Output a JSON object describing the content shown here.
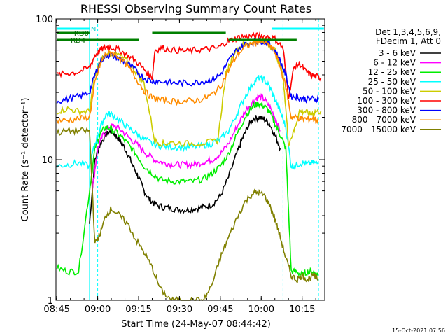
{
  "chart_data": {
    "type": "line",
    "title": "RHESSI Observing Summary Count Rates",
    "xlabel": "Start Time (24-May-07 08:44:42)",
    "ylabel": "Count Rate (s⁻¹ detector⁻¹)",
    "y_scale": "log",
    "ylim": [
      1,
      100
    ],
    "xlim": [
      "08:45",
      "10:23"
    ],
    "x_ticks": [
      "08:45",
      "09:00",
      "09:15",
      "09:30",
      "09:45",
      "10:00",
      "10:15"
    ],
    "y_ticks": [
      "1",
      "10",
      "100"
    ],
    "grid": false,
    "legend_placement": "right",
    "legend_header": [
      "Det 1,3,4,5,6,9,",
      "FDecim 1, Att 0"
    ],
    "footer_date": "15-Oct-2021 07:56",
    "series": [
      {
        "name": "3 - 6 keV",
        "color": "#000000",
        "x": [
          "08:57",
          "08:59",
          "09:01",
          "09:03",
          "09:05",
          "09:07",
          "09:09",
          "09:11",
          "09:13",
          "09:15",
          "09:17",
          "09:19",
          "09:21",
          "09:24",
          "09:27",
          "09:30",
          "09:33",
          "09:36",
          "09:39",
          "09:42",
          "09:45",
          "09:48",
          "09:51",
          "09:53",
          "09:55",
          "09:57",
          "09:59",
          "10:01",
          "10:03",
          "10:05",
          "10:07"
        ],
        "y": [
          3.5,
          10,
          13,
          15,
          16,
          14.5,
          13,
          11,
          9,
          7.5,
          6,
          5.2,
          4.8,
          4.6,
          4.5,
          4.4,
          4.4,
          4.5,
          4.6,
          4.8,
          5.5,
          7.5,
          11,
          14,
          17,
          19.5,
          20,
          19.5,
          18,
          15,
          12
        ]
      },
      {
        "name": "6 - 12 keV",
        "color": "#ff00ff",
        "x": [
          "08:58",
          "09:00",
          "09:02",
          "09:04",
          "09:06",
          "09:09",
          "09:12",
          "09:15",
          "09:18",
          "09:21",
          "09:24",
          "09:27",
          "09:30",
          "09:33",
          "09:36",
          "09:39",
          "09:42",
          "09:45",
          "09:48",
          "09:51",
          "09:54",
          "09:57",
          "09:59",
          "10:01",
          "10:03",
          "10:05",
          "10:07"
        ],
        "y": [
          6,
          12,
          15,
          17,
          17.5,
          16,
          14,
          12.5,
          11,
          10,
          9.5,
          9.3,
          9.2,
          9.2,
          9.3,
          9.6,
          10,
          11,
          13,
          17,
          22,
          26,
          28,
          27,
          24,
          20,
          16
        ]
      },
      {
        "name": "12 - 25 keV",
        "color": "#00ee00",
        "x": [
          "08:45",
          "08:49",
          "08:53",
          "08:57",
          "08:59",
          "09:01",
          "09:03",
          "09:05",
          "09:08",
          "09:11",
          "09:14",
          "09:17",
          "09:20",
          "09:23",
          "09:27",
          "09:31",
          "09:35",
          "09:39",
          "09:42",
          "09:45",
          "09:48",
          "09:51",
          "09:54",
          "09:57",
          "09:59",
          "10:01",
          "10:03",
          "10:05",
          "10:07",
          "10:09",
          "10:11",
          "10:13",
          "10:15",
          "10:17",
          "10:19",
          "10:21"
        ],
        "y": [
          1.7,
          1.6,
          1.6,
          6,
          12,
          15.5,
          17,
          16.5,
          15,
          13,
          11,
          9,
          8,
          7.2,
          7,
          7,
          7,
          7.3,
          8,
          9,
          11,
          15,
          20,
          24,
          25,
          24,
          22,
          18,
          15,
          12,
          1.6,
          1.6,
          1.5,
          1.6,
          1.6,
          1.5
        ]
      },
      {
        "name": "25 - 50 keV",
        "color": "#00ffff",
        "x": [
          "08:45",
          "08:49",
          "08:53",
          "08:57",
          "08:59",
          "09:01",
          "09:03",
          "09:05",
          "09:08",
          "09:11",
          "09:14",
          "09:17",
          "09:20",
          "09:23",
          "09:27",
          "09:31",
          "09:35",
          "09:39",
          "09:42",
          "09:45",
          "09:48",
          "09:51",
          "09:54",
          "09:57",
          "09:59",
          "10:01",
          "10:03",
          "10:05",
          "10:07",
          "10:09",
          "10:11",
          "10:13",
          "10:15",
          "10:17",
          "10:19",
          "10:21"
        ],
        "y": [
          9,
          9.2,
          9.5,
          9,
          13,
          17,
          21,
          21,
          19,
          17,
          15.5,
          14,
          13,
          12.5,
          12.3,
          12.2,
          12.3,
          12.6,
          13,
          14,
          16,
          21,
          28,
          35,
          38,
          37,
          33,
          27,
          22,
          17,
          9,
          9.2,
          9.5,
          9.3,
          9.5,
          9.4
        ]
      },
      {
        "name": "50 - 100 keV",
        "color": "#cccc00",
        "x": [
          "08:45",
          "08:49",
          "08:53",
          "08:57",
          "08:59",
          "09:01",
          "09:03",
          "09:05",
          "09:08",
          "09:11",
          "09:14",
          "09:17",
          "09:21",
          "09:24",
          "09:27",
          "09:33",
          "09:39",
          "09:44",
          "09:47",
          "09:50",
          "09:53",
          "09:56",
          "09:59",
          "10:02",
          "10:05",
          "10:08",
          "10:10",
          "10:12",
          "10:14",
          "10:16",
          "10:18",
          "10:20",
          "10:22"
        ],
        "y": [
          22,
          23,
          22,
          22,
          40,
          50,
          55,
          57,
          55,
          50,
          42,
          35,
          13.5,
          13,
          13.2,
          13,
          13.2,
          13.5,
          40,
          58,
          65,
          68,
          70,
          68,
          60,
          40,
          13,
          16,
          22,
          22,
          21,
          22,
          22
        ]
      },
      {
        "name": "100 - 300 keV",
        "color": "#ff0000",
        "x": [
          "08:45",
          "08:49",
          "08:53",
          "08:57",
          "08:59",
          "09:01",
          "09:03",
          "09:05",
          "09:08",
          "09:11",
          "09:14",
          "09:17",
          "09:20",
          "09:21",
          "09:24",
          "09:28",
          "09:32",
          "09:36",
          "09:40",
          "09:44",
          "09:47",
          "09:50",
          "09:53",
          "09:56",
          "09:59",
          "10:02",
          "10:05",
          "10:08",
          "10:10",
          "10:12",
          "10:14",
          "10:16",
          "10:18",
          "10:20",
          "10:22"
        ],
        "y": [
          40,
          41,
          42,
          45,
          55,
          60,
          63,
          63,
          60,
          55,
          50,
          44,
          38,
          60,
          62,
          60,
          59,
          60,
          61,
          62,
          68,
          72,
          75,
          75,
          76,
          75,
          72,
          62,
          28,
          45,
          48,
          43,
          40,
          39,
          38
        ]
      },
      {
        "name": "300 - 800 keV",
        "color": "#0000ff",
        "x": [
          "08:45",
          "08:49",
          "08:53",
          "08:57",
          "08:59",
          "09:01",
          "09:03",
          "09:05",
          "09:08",
          "09:11",
          "09:14",
          "09:17",
          "09:20",
          "09:23",
          "09:27",
          "09:31",
          "09:35",
          "09:39",
          "09:42",
          "09:45",
          "09:48",
          "09:51",
          "09:54",
          "09:57",
          "09:59",
          "10:01",
          "10:03",
          "10:05",
          "10:07",
          "10:09",
          "10:11",
          "10:13",
          "10:15",
          "10:17",
          "10:19",
          "10:21"
        ],
        "y": [
          26,
          27,
          28,
          30,
          40,
          50,
          55,
          55,
          52,
          48,
          43,
          38,
          36,
          36,
          35,
          35,
          35,
          36,
          37,
          40,
          50,
          60,
          66,
          68,
          70,
          69,
          66,
          60,
          50,
          40,
          28,
          28,
          27,
          27,
          27,
          27
        ]
      },
      {
        "name": "800 - 7000 keV",
        "color": "#ff8c00",
        "x": [
          "08:45",
          "08:49",
          "08:53",
          "08:57",
          "08:59",
          "09:01",
          "09:03",
          "09:05",
          "09:08",
          "09:11",
          "09:14",
          "09:17",
          "09:20",
          "09:23",
          "09:27",
          "09:31",
          "09:35",
          "09:39",
          "09:42",
          "09:45",
          "09:48",
          "09:51",
          "09:54",
          "09:57",
          "09:59",
          "10:01",
          "10:03",
          "10:05",
          "10:07",
          "10:09",
          "10:11",
          "10:13",
          "10:15",
          "10:17",
          "10:19",
          "10:21"
        ],
        "y": [
          19,
          19,
          19.5,
          20,
          35,
          48,
          56,
          58,
          53,
          46,
          38,
          31,
          27.5,
          26.5,
          26,
          26,
          26.2,
          27,
          29,
          33,
          43,
          55,
          63,
          67,
          69,
          68,
          65,
          58,
          45,
          33,
          20,
          20,
          19.5,
          19.5,
          19.5,
          19
        ]
      },
      {
        "name": "7000 - 15000 keV",
        "color": "#808000",
        "x": [
          "08:45",
          "08:49",
          "08:53",
          "08:57",
          "08:59",
          "09:01",
          "09:03",
          "09:05",
          "09:08",
          "09:11",
          "09:14",
          "09:17",
          "09:20",
          "09:23",
          "09:27",
          "09:31",
          "09:35",
          "09:39",
          "09:42",
          "09:45",
          "09:48",
          "09:51",
          "09:54",
          "09:57",
          "09:59",
          "10:01",
          "10:03",
          "10:05",
          "10:07",
          "10:09",
          "10:11",
          "10:13",
          "10:15",
          "10:17",
          "10:19",
          "10:21"
        ],
        "y": [
          15.5,
          16,
          16,
          16,
          2.5,
          3,
          4,
          4.5,
          4,
          3.5,
          2.7,
          2.2,
          1.7,
          1.2,
          1,
          1,
          1,
          1,
          1.3,
          2,
          2.8,
          3.8,
          5,
          5.8,
          5.8,
          5.6,
          4.8,
          3.8,
          2.8,
          2,
          1.5,
          1.4,
          1.5,
          1.4,
          1.5,
          1.4
        ]
      }
    ],
    "attenuator_bars": [
      {
        "label": "N",
        "color": "#00ffff",
        "start": "08:45",
        "end": "08:57"
      },
      {
        "label": "",
        "color": "#00ffff",
        "start": "10:04",
        "end": "10:23"
      },
      {
        "label": "RD0",
        "color": "#008000",
        "start": "08:45",
        "end": "08:57"
      },
      {
        "label": "",
        "color": "#008000",
        "start": "09:20",
        "end": "09:47"
      },
      {
        "label": "RD4",
        "color": "#008000",
        "start": "08:45",
        "end": "09:15"
      },
      {
        "label": "",
        "color": "#008000",
        "start": "09:48",
        "end": "10:13"
      }
    ],
    "dashed_vlines": [
      {
        "color": "#00ffff",
        "x": [
          "09:00",
          "10:08",
          "10:21"
        ]
      },
      {
        "color": "#00ffff",
        "x": [
          "08:57"
        ],
        "solid": true
      }
    ]
  }
}
